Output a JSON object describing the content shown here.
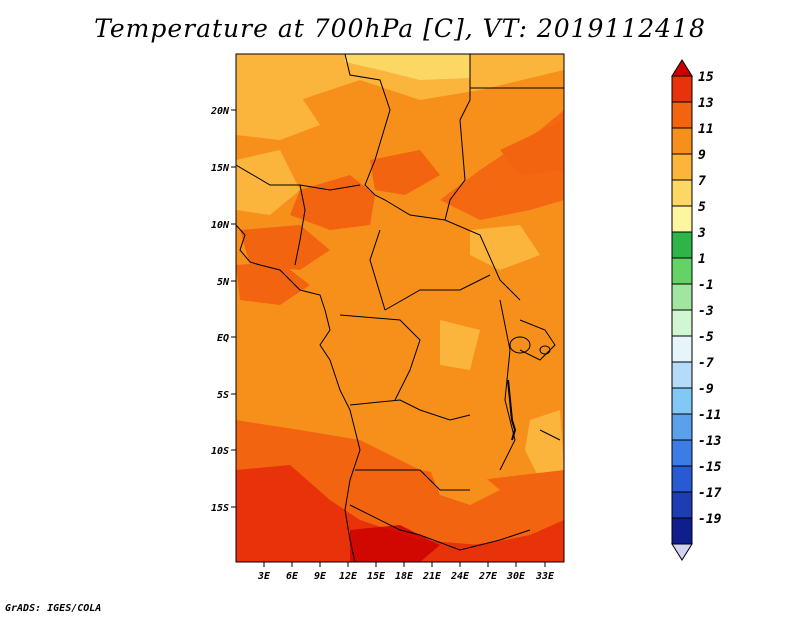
{
  "title": "Temperature at 700hPa [C], VT: 2019112418",
  "credit": "GrADS: IGES/COLA",
  "map": {
    "y_ticks": [
      "20N",
      "15N",
      "10N",
      "5N",
      "EQ",
      "5S",
      "10S",
      "15S"
    ],
    "x_ticks": [
      "3E",
      "6E",
      "9E",
      "12E",
      "15E",
      "18E",
      "21E",
      "24E",
      "27E",
      "30E",
      "33E"
    ]
  },
  "colorbar": {
    "labels": [
      "15",
      "13",
      "11",
      "9",
      "7",
      "5",
      "3",
      "1",
      "-1",
      "-3",
      "-5",
      "-7",
      "-9",
      "-11",
      "-13",
      "-15",
      "-17",
      "-19"
    ],
    "colors": [
      "#cc0000",
      "#e8320a",
      "#f2640f",
      "#f7901a",
      "#fbb43c",
      "#fdd764",
      "#fef5a0",
      "#2fb44a",
      "#64d264",
      "#a0e6a0",
      "#d2f5d2",
      "#e6f5fa",
      "#b4dcfa",
      "#82c8f5",
      "#5aa0ec",
      "#3c7ce6",
      "#285ad2",
      "#1e3cb4",
      "#0f1e8c",
      "#d2d2f5"
    ]
  }
}
